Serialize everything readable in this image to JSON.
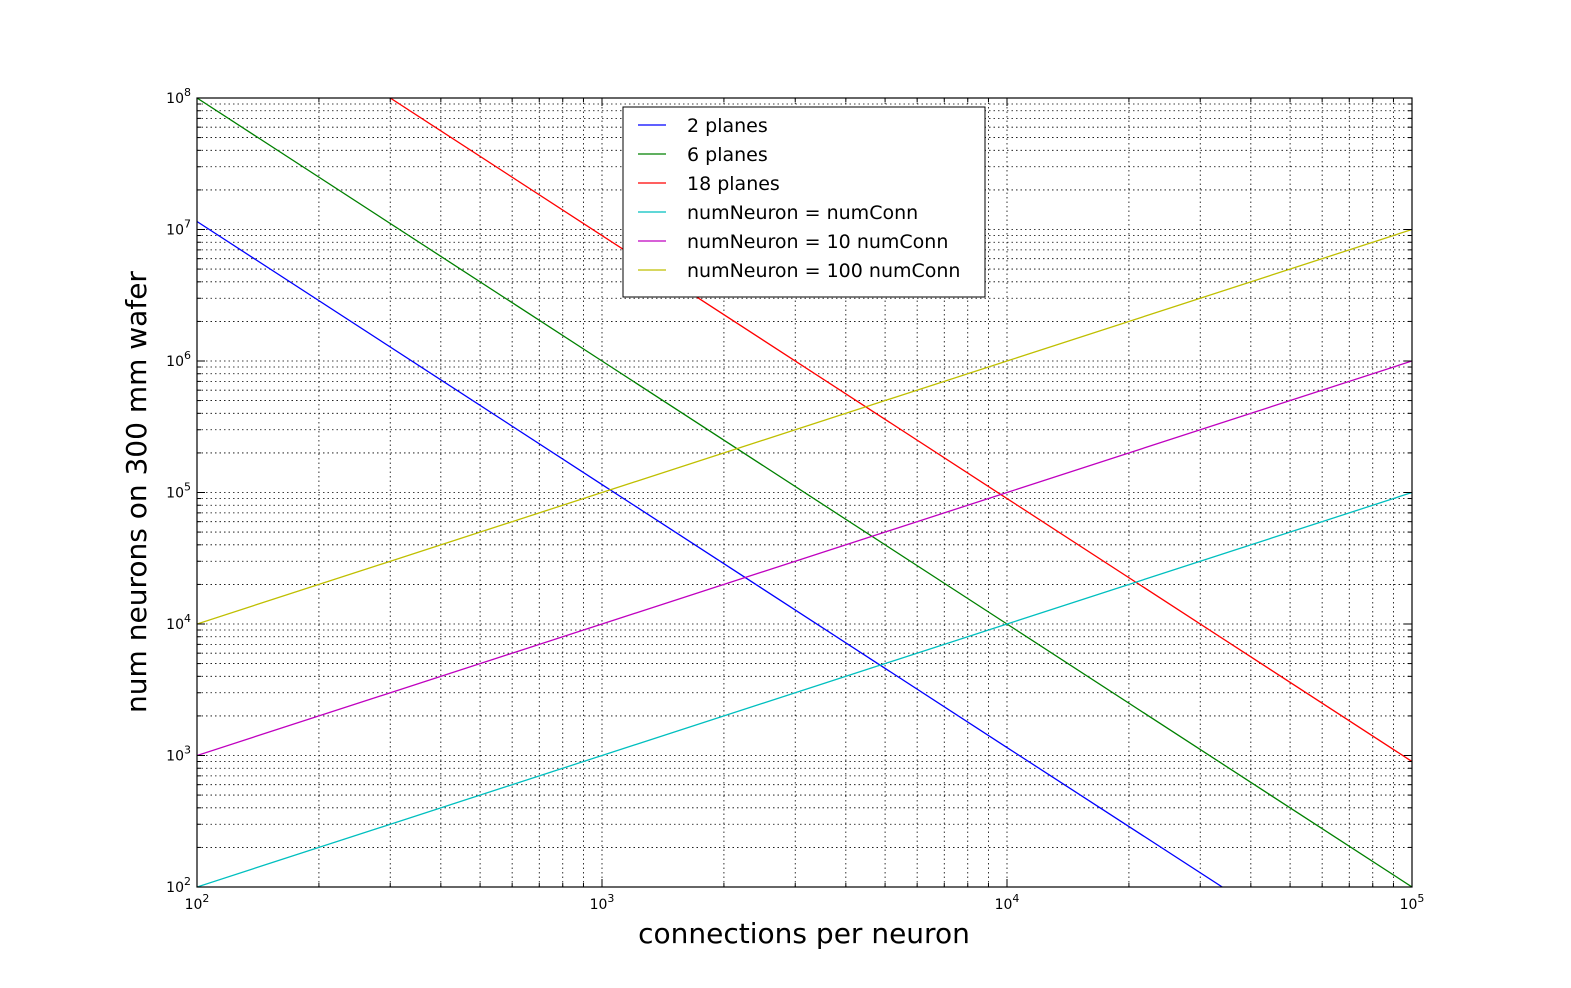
{
  "chart_data": {
    "type": "line",
    "xlabel": "connections per neuron",
    "ylabel": "num neurons on 300 mm wafer",
    "x_scale": "log",
    "y_scale": "log",
    "xlim": [
      100,
      100000
    ],
    "ylim": [
      100,
      100000000
    ],
    "x_ticks": [
      {
        "base": "10",
        "exp": "2"
      },
      {
        "base": "10",
        "exp": "3"
      },
      {
        "base": "10",
        "exp": "4"
      },
      {
        "base": "10",
        "exp": "5"
      }
    ],
    "y_ticks": [
      {
        "base": "10",
        "exp": "2"
      },
      {
        "base": "10",
        "exp": "3"
      },
      {
        "base": "10",
        "exp": "4"
      },
      {
        "base": "10",
        "exp": "5"
      },
      {
        "base": "10",
        "exp": "6"
      },
      {
        "base": "10",
        "exp": "7"
      },
      {
        "base": "10",
        "exp": "8"
      }
    ],
    "grid": true,
    "legend_position": "top-center",
    "series": [
      {
        "name": "2 planes",
        "color": "#0000ff",
        "x": [
          100,
          1000,
          10000,
          34000
        ],
        "y": [
          11500000,
          115000,
          1150,
          100
        ]
      },
      {
        "name": "6 planes",
        "color": "#008000",
        "x": [
          100,
          1000,
          10000,
          100000
        ],
        "y": [
          100000000,
          1000000,
          10000,
          100
        ]
      },
      {
        "name": "18 planes",
        "color": "#ff0000",
        "x": [
          300,
          1000,
          10000,
          100000
        ],
        "y": [
          100000000,
          9000000,
          90000,
          900
        ]
      },
      {
        "name": "numNeuron = numConn",
        "color": "#00bfbf",
        "x": [
          100,
          1000,
          10000,
          100000
        ],
        "y": [
          100,
          1000,
          10000,
          100000
        ]
      },
      {
        "name": "numNeuron = 10 numConn",
        "color": "#bf00bf",
        "x": [
          100,
          1000,
          10000,
          100000
        ],
        "y": [
          1000,
          10000,
          100000,
          1000000
        ]
      },
      {
        "name": "numNeuron = 100 numConn",
        "color": "#bfbf00",
        "x": [
          100,
          1000,
          10000,
          100000
        ],
        "y": [
          10000,
          100000,
          1000000,
          10000000
        ]
      }
    ]
  }
}
